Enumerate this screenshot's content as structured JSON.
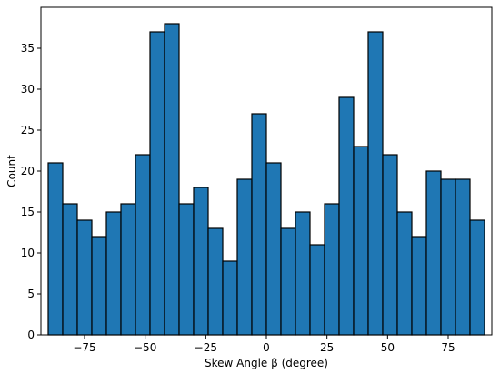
{
  "chart_data": {
    "type": "bar",
    "title": "",
    "xlabel": "Skew Angle β (degree)",
    "ylabel": "Count",
    "xlim": [
      -93,
      93
    ],
    "ylim": [
      0,
      40
    ],
    "xticks": [
      -75,
      -50,
      -25,
      0,
      25,
      50,
      75
    ],
    "xtick_labels": [
      "−75",
      "−50",
      "−25",
      "0",
      "25",
      "50",
      "75"
    ],
    "yticks": [
      0,
      5,
      10,
      15,
      20,
      25,
      30,
      35
    ],
    "ytick_labels": [
      "0",
      "5",
      "10",
      "15",
      "20",
      "25",
      "30",
      "35"
    ],
    "bin_edges": [
      -90,
      -84,
      -78,
      -72,
      -66,
      -60,
      -54,
      -48,
      -42,
      -36,
      -30,
      -24,
      -18,
      -12,
      -6,
      0,
      6,
      12,
      18,
      24,
      30,
      36,
      42,
      48,
      54,
      60,
      66,
      72,
      78,
      84,
      90
    ],
    "values": [
      21,
      16,
      14,
      12,
      15,
      16,
      22,
      37,
      38,
      16,
      18,
      13,
      9,
      19,
      27,
      21,
      13,
      15,
      11,
      16,
      29,
      23,
      37,
      22,
      15,
      12,
      20,
      19,
      19,
      14
    ],
    "bar_color": "#1f77b4",
    "edge_color": "#000000",
    "grid": false,
    "legend": "none"
  }
}
